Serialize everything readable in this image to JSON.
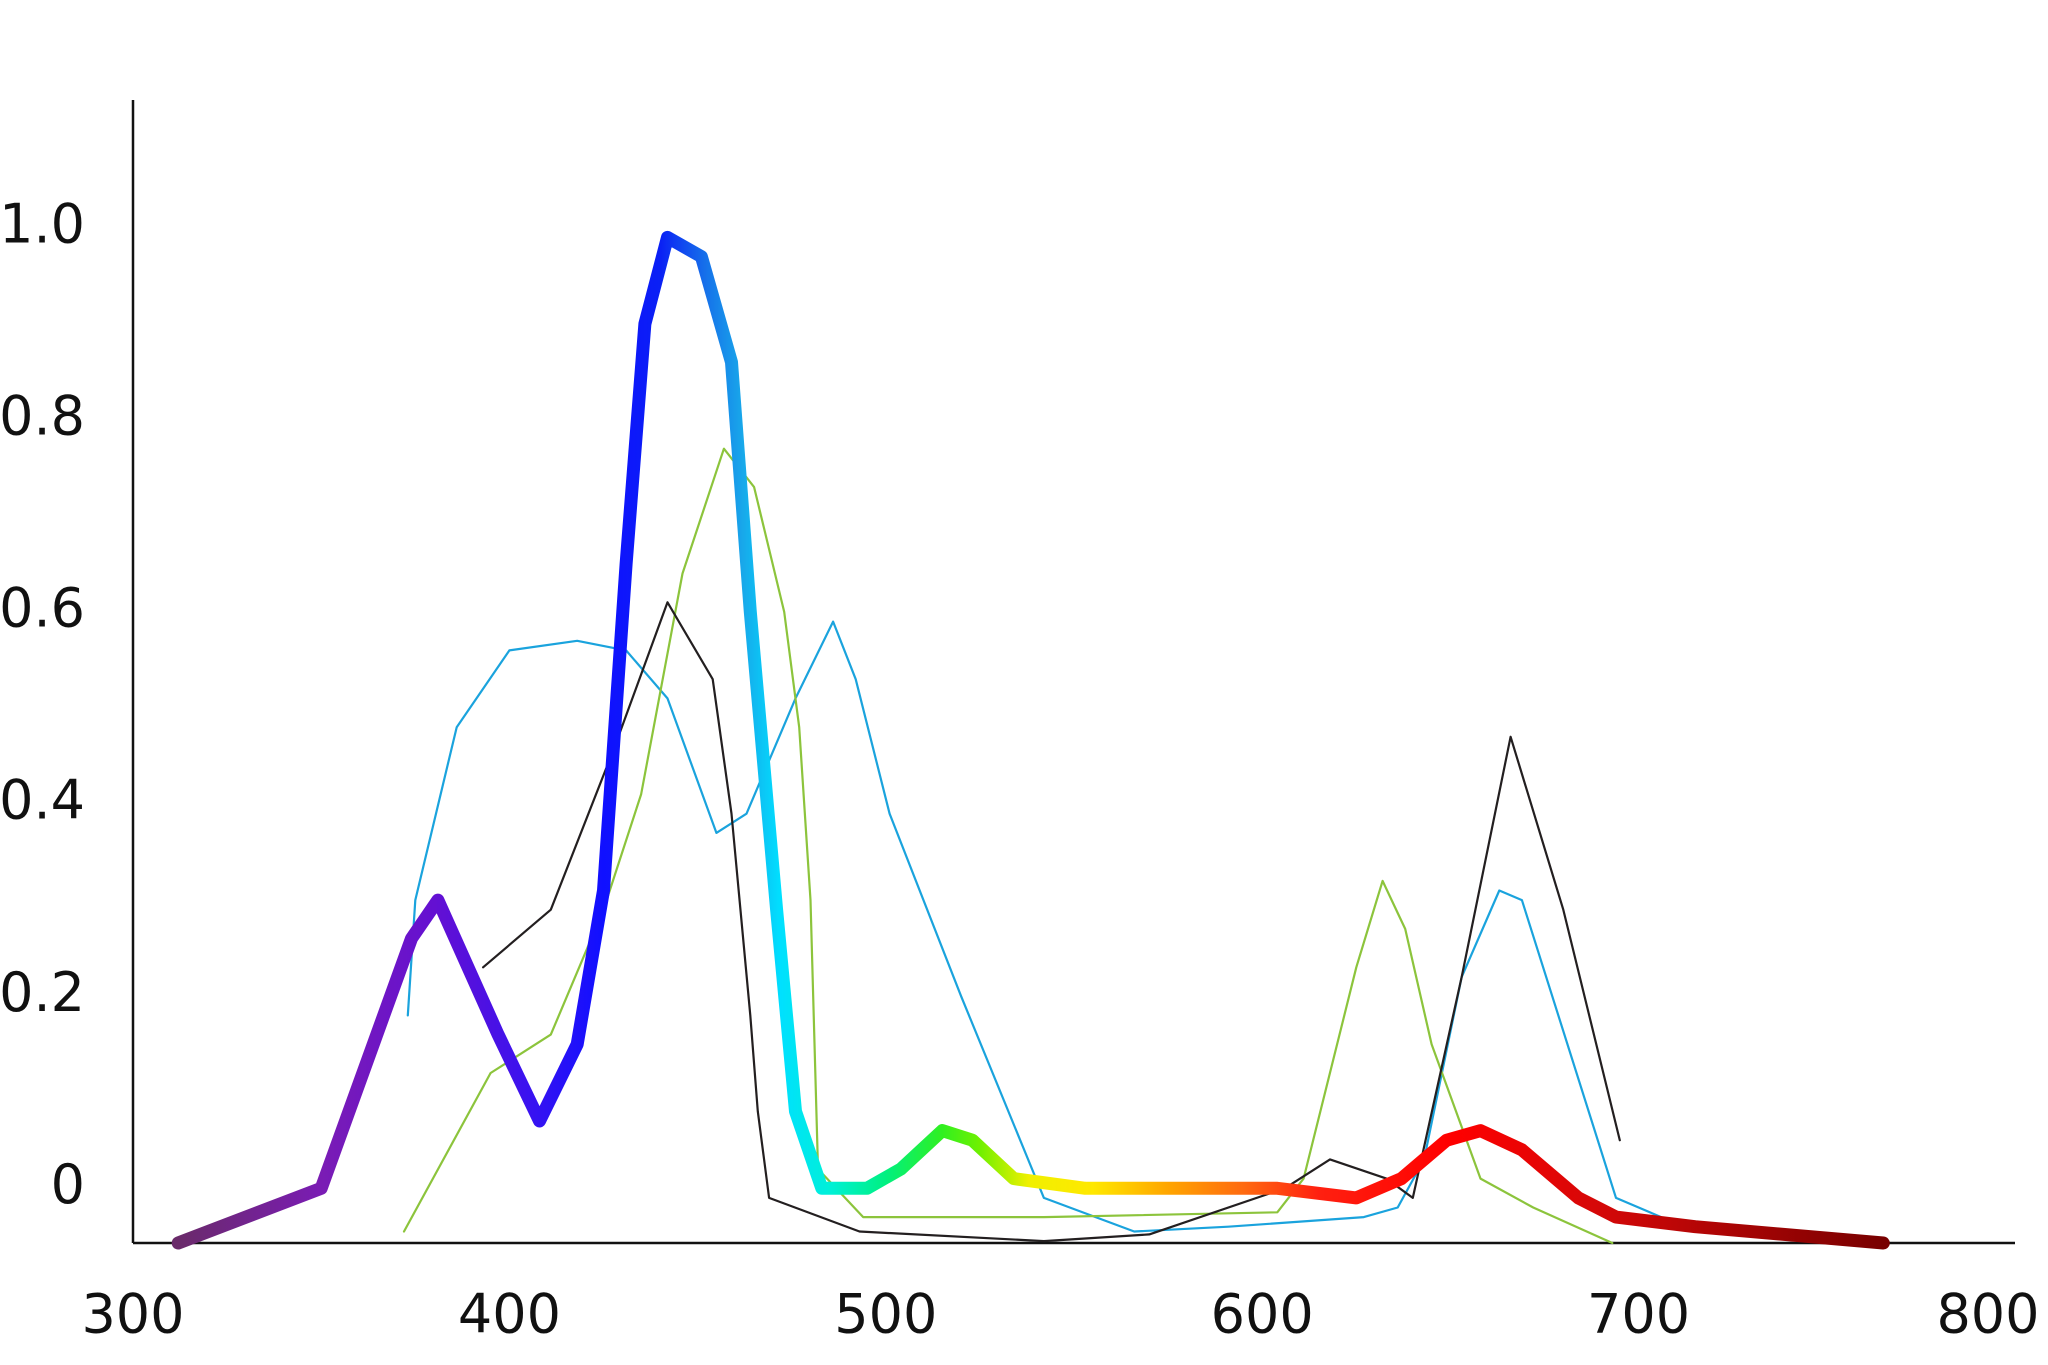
{
  "chart_data": {
    "type": "line",
    "xlim": [
      300,
      800
    ],
    "xticks": [
      300,
      400,
      500,
      600,
      700,
      800
    ],
    "ylim": [
      -0.057,
      1.133
    ],
    "yticks": [
      0,
      0.2,
      0.4,
      0.6,
      0.8,
      {
        "value": 1,
        "label": "1.0"
      }
    ],
    "grid": false,
    "series": [
      {
        "color": "#1aa3dd",
        "x": [
          373,
          375,
          386,
          400,
          418,
          431,
          442,
          455,
          463,
          476,
          486,
          492,
          501,
          520,
          542,
          566,
          591,
          627,
          636,
          643,
          653,
          663,
          669,
          694,
          706
        ],
        "values": [
          0.18,
          0.3,
          0.48,
          0.56,
          0.57,
          0.56,
          0.51,
          0.37,
          0.39,
          0.51,
          0.59,
          0.53,
          0.39,
          0.2,
          -0.01,
          -0.045,
          -0.04,
          -0.03,
          -0.02,
          0.03,
          0.22,
          0.31,
          0.3,
          -0.01,
          -0.03
        ]
      },
      {
        "color": "#8cc43c",
        "x": [
          372,
          395,
          411,
          425,
          435,
          446,
          457,
          465,
          473,
          477,
          480,
          482,
          494,
          542,
          604,
          611,
          625,
          632,
          638,
          645,
          658,
          672,
          693
        ],
        "values": [
          -0.045,
          0.12,
          0.16,
          0.29,
          0.41,
          0.64,
          0.77,
          0.73,
          0.6,
          0.48,
          0.3,
          0.02,
          -0.03,
          -0.03,
          -0.025,
          0.01,
          0.23,
          0.32,
          0.27,
          0.15,
          0.01,
          -0.02,
          -0.057
        ]
      },
      {
        "color": "#231f20",
        "x": [
          393,
          411,
          428,
          442,
          454,
          459,
          464,
          466,
          469,
          493,
          542,
          570,
          606,
          618,
          633,
          640,
          653,
          666,
          680,
          695
        ],
        "values": [
          0.23,
          0.29,
          0.46,
          0.61,
          0.53,
          0.39,
          0.18,
          0.08,
          -0.01,
          -0.045,
          -0.055,
          -0.048,
          0.0,
          0.03,
          0.01,
          -0.01,
          0.22,
          0.47,
          0.29,
          0.05
        ]
      },
      {
        "color": "spectrum",
        "x": [
          312,
          350,
          374,
          381,
          397,
          408,
          418,
          425,
          431,
          436,
          442,
          451,
          459,
          464,
          471,
          476,
          483,
          495,
          504,
          515,
          523,
          534,
          553,
          577,
          604,
          625,
          637,
          649,
          658,
          669,
          684,
          694,
          715,
          765
        ],
        "values": [
          -0.057,
          0.0,
          0.26,
          0.3,
          0.16,
          0.07,
          0.15,
          0.31,
          0.65,
          0.9,
          0.99,
          0.97,
          0.86,
          0.6,
          0.29,
          0.08,
          0.0,
          0.0,
          0.02,
          0.06,
          0.05,
          0.01,
          0.0,
          0.0,
          0.0,
          -0.01,
          0.01,
          0.05,
          0.06,
          0.04,
          -0.01,
          -0.03,
          -0.04,
          -0.057
        ]
      }
    ]
  }
}
